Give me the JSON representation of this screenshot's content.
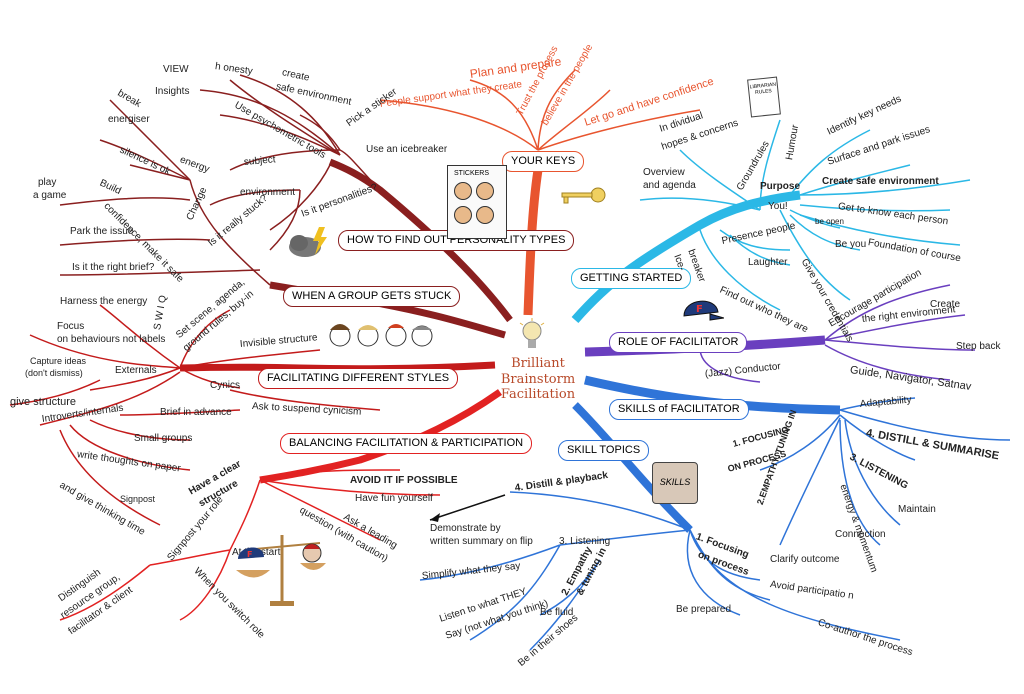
{
  "center": {
    "line1": "Brilliant",
    "line2": "Brainstorm",
    "line3": "Facilitation"
  },
  "colors": {
    "red": "#9b1c1c",
    "orange": "#e8552f",
    "cyan": "#2bb8e6",
    "purple": "#6a3fbf",
    "blue": "#2f74d8",
    "darkred": "#8a1f1f"
  },
  "icons": [
    "lightbulb-icon",
    "key-icon",
    "stickers-icon",
    "storm-cloud-icon",
    "people-faces-icon",
    "cap-icon",
    "scales-icon",
    "briefcase-icon",
    "paper-icon"
  ],
  "sticker_label": "STICKERS",
  "briefcase_label": "SKILLS",
  "paper_label": "LIBRARIAN RULES",
  "branches": {
    "your_keys": "YOUR KEYS",
    "getting_started": "GETTING STARTED",
    "role": "ROLE OF FACILITATOR",
    "skills": "SKILLS  of FACILITATOR",
    "skill_topics": "SKILL TOPICS",
    "personality": "HOW TO FIND OUT PERSONALITY TYPES",
    "stuck": "WHEN A GROUP GETS STUCK",
    "styles": "FACILITATING DIFFERENT STYLES",
    "balancing": "BALANCING FACILITATION & PARTICIPATION"
  },
  "keys": {
    "a": "People support what they create",
    "b": "Plan and prepare",
    "c": "Trust the process",
    "d": "believe in the people",
    "e": "Let go and have confidence"
  },
  "started": {
    "individual": "In dividual",
    "hopes": "hopes & concerns",
    "overview": "Overview",
    "agenda": "and agenda",
    "groundrules": "Groundrules",
    "humour": "Humour",
    "identify": "Identify key needs",
    "surface": "Surface and park issues",
    "purpose": "Purpose",
    "safe": "Create safe environment",
    "you": "You!",
    "getknow": "Get to know each person",
    "foundation": "Foundation of course",
    "beopen": "be open",
    "beyou": "Be you",
    "credentials": "Give your credentials",
    "ice": "Ice-",
    "breaker": "breaker",
    "presence": "Presence people",
    "laughter": "Laughter",
    "findout": "Find out who they are"
  },
  "role": {
    "encourage": "Encourage participation",
    "create": "Create",
    "rightenv": "the right environment",
    "stepback": "Step back",
    "guide": "Guide, Navigator,  Satnav",
    "conductor": "(Jazz) Conductor"
  },
  "skills": {
    "adapt": "Adaptability",
    "distill": "4. DISTILL & SUMMARISE",
    "listening": "3. LISTENING",
    "focusing": "1. FOCUSING",
    "onprocess": "ON PROCESS",
    "empathy": "2.EMPATHY, TUNING IN",
    "energy": "energy & momentum",
    "maintain": "Maintain",
    "connection": "Connection"
  },
  "topics": {
    "distill": "4. Distill & playback",
    "demo": "Demonstrate by",
    "written": "written summary on flip",
    "listening": "3. Listening",
    "simplify": "Simplify what they say",
    "listen1": "Listen to what THEY",
    "listen2": "Say (not what you think)",
    "empathy": "2. Empathy",
    "tuning": "& tuning in",
    "fluid": "Be fluid",
    "shoes": "Be in their shoes",
    "focus1": "1. Focusing",
    "focus2": "on process",
    "clarify": "Clarify outcome",
    "avoid": "Avoid participatio n",
    "prepared": "Be prepared",
    "coauthor": "Co-author the process"
  },
  "personality": {
    "view": "VIEW",
    "honesty": "h onesty",
    "create": "create",
    "safeenv": "safe environment",
    "insights": "Insights",
    "psycho": "Use psychometric tools",
    "sticker": "Pick a sticker",
    "icebreaker": "Use an icebreaker"
  },
  "stuckn": {
    "break": "break",
    "energiser": "energiser",
    "energy": "energy",
    "silence": "silence is ok",
    "subject": "subject",
    "environment": "environment",
    "play": "play",
    "agame": "a game",
    "build": "Build",
    "confidence": "confidence, make it safe",
    "change": "Change",
    "really": "Is it really stuck?",
    "personalities": "Is it personalities?",
    "park": "Park the issue",
    "brief": "Is it the right brief?"
  },
  "styles": {
    "harness": "Harness the energy",
    "swiq": "S W I Q",
    "focus1": "Focus",
    "focus2": "on behaviours not labels",
    "setscene": "Set scene, agenda,",
    "groundrules": "ground rules, buy-in",
    "invisible": "Invisible structure",
    "capture1": "Capture ideas",
    "capture2": "(don't dismiss)",
    "externals": "Externals",
    "givestructure": "give structure",
    "cynics": "Cynics",
    "suspend": "Ask to suspend cynicism",
    "intro": "Introverts/internals",
    "briefadv": "Brief in advance",
    "small": "Small groups",
    "write": "write thoughts on paper",
    "signpost": "Signpost",
    "thinking": "and give thinking time"
  },
  "balance": {
    "clear1": "Have a clear",
    "clear2": "structure",
    "avoid": "AVOID IT IF POSSIBLE",
    "fun": "Have fun yourself",
    "leading1": "Ask a leading",
    "leading2": "question (with caution)",
    "signrole": "Signpost your role",
    "start": "At the start",
    "switch": "When you switch role",
    "distinguish1": "Distinguish",
    "distinguish2": "resource group,",
    "distinguish3": "facilitator & client"
  }
}
